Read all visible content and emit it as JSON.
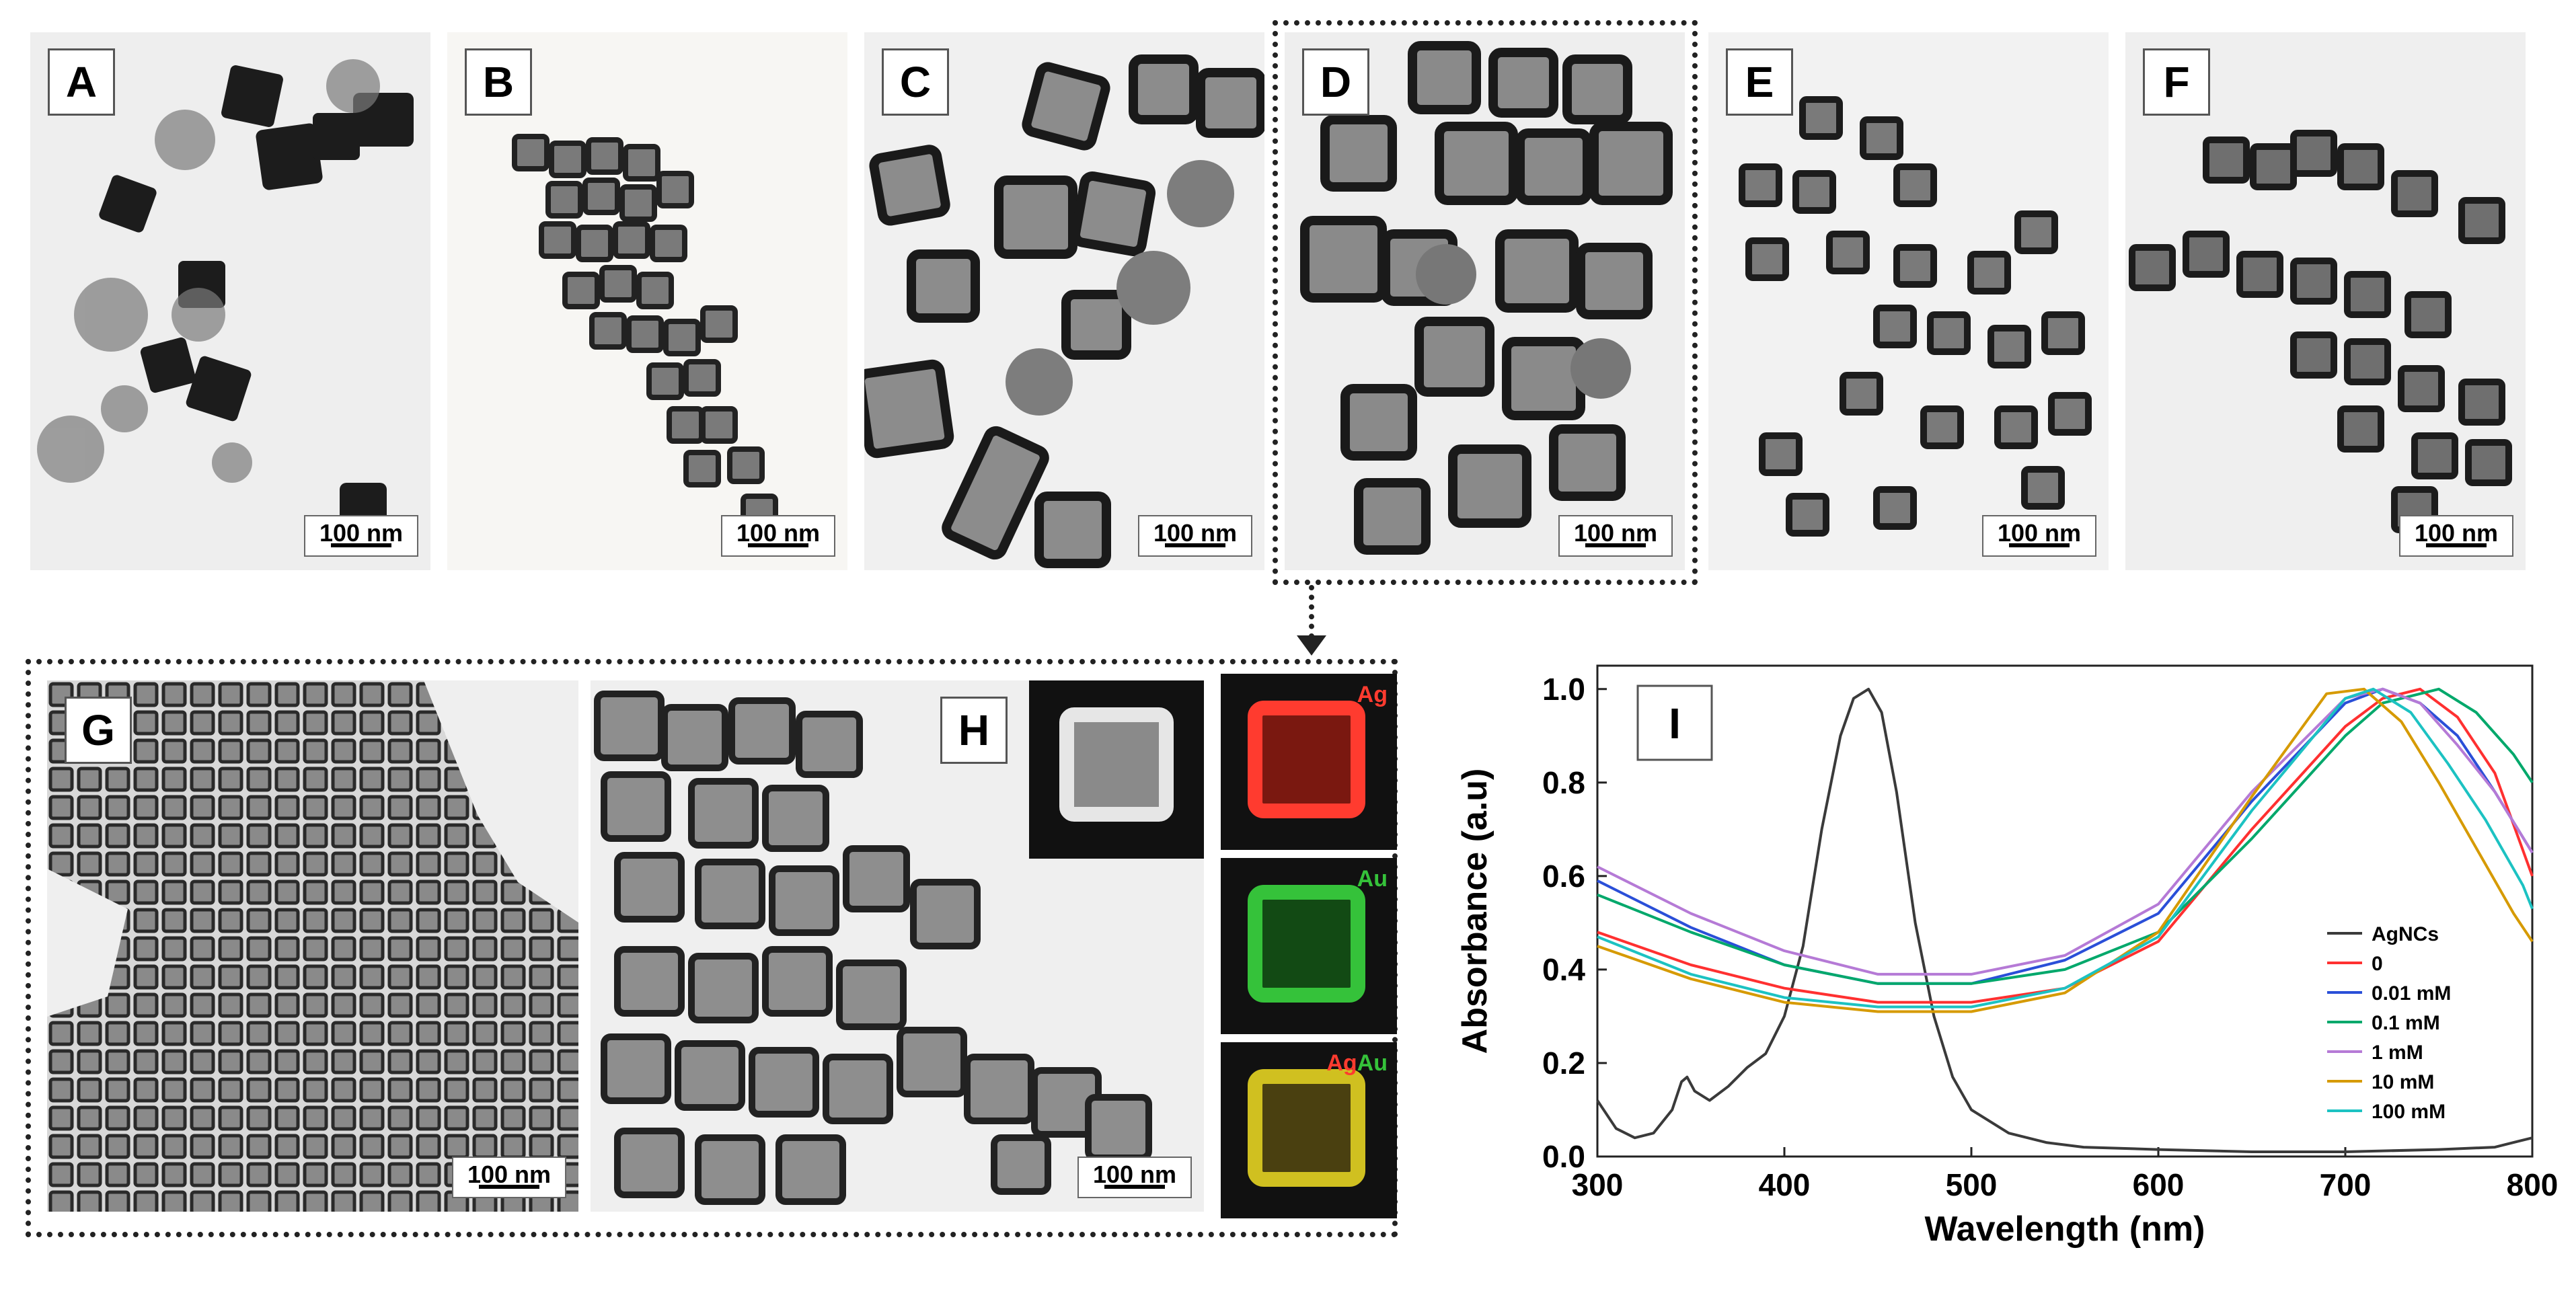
{
  "panels": {
    "A": {
      "label": "A",
      "scale": "100 nm"
    },
    "B": {
      "label": "B",
      "scale": "100 nm"
    },
    "C": {
      "label": "C",
      "scale": "100 nm"
    },
    "D": {
      "label": "D",
      "scale": "100 nm"
    },
    "E": {
      "label": "E",
      "scale": "100 nm"
    },
    "F": {
      "label": "F",
      "scale": "100 nm"
    },
    "G": {
      "label": "G",
      "scale": "100 nm"
    },
    "H": {
      "label": "H",
      "scale": "100 nm"
    }
  },
  "maps": {
    "ag": "Ag",
    "au": "Au",
    "ag_overlay": "Ag",
    "au_overlay": "Au"
  },
  "map_colors": {
    "ag": "#ff3b2f",
    "au": "#35c23a"
  },
  "chart_data": {
    "type": "line",
    "panel_label": "I",
    "xlabel": "Wavelength (nm)",
    "ylabel": "Absorbance (a.u)",
    "xlim": [
      300,
      800
    ],
    "ylim": [
      0.0,
      1.05
    ],
    "xticks": [
      "300",
      "400",
      "500",
      "600",
      "700",
      "800"
    ],
    "yticks": [
      "0.0",
      "0.2",
      "0.4",
      "0.6",
      "0.8",
      "1.0"
    ],
    "legend_position": "bottom-right",
    "series": [
      {
        "name": "AgNCs",
        "color": "#3a3a3a",
        "x": [
          300,
          310,
          320,
          330,
          340,
          345,
          348,
          352,
          360,
          370,
          380,
          390,
          400,
          410,
          420,
          430,
          437,
          445,
          452,
          460,
          470,
          480,
          490,
          500,
          520,
          540,
          560,
          600,
          650,
          700,
          750,
          780,
          790,
          800
        ],
        "y": [
          0.12,
          0.06,
          0.04,
          0.05,
          0.1,
          0.16,
          0.17,
          0.14,
          0.12,
          0.15,
          0.19,
          0.22,
          0.3,
          0.45,
          0.7,
          0.9,
          0.98,
          1.0,
          0.95,
          0.78,
          0.5,
          0.3,
          0.17,
          0.1,
          0.05,
          0.03,
          0.02,
          0.015,
          0.01,
          0.01,
          0.015,
          0.02,
          0.03,
          0.04
        ]
      },
      {
        "name": "0",
        "color": "#ff3030",
        "x": [
          300,
          350,
          400,
          450,
          500,
          550,
          600,
          650,
          700,
          720,
          740,
          760,
          780,
          800
        ],
        "y": [
          0.48,
          0.41,
          0.36,
          0.33,
          0.33,
          0.36,
          0.46,
          0.7,
          0.92,
          0.98,
          1.0,
          0.94,
          0.82,
          0.6
        ]
      },
      {
        "name": "0.01 mM",
        "color": "#2a4fd8",
        "x": [
          300,
          350,
          400,
          450,
          500,
          550,
          600,
          650,
          700,
          720,
          740,
          760,
          780,
          800
        ],
        "y": [
          0.59,
          0.49,
          0.41,
          0.37,
          0.37,
          0.42,
          0.52,
          0.76,
          0.97,
          1.0,
          0.97,
          0.9,
          0.78,
          0.65
        ]
      },
      {
        "name": "0.1 mM",
        "color": "#00a86b",
        "x": [
          300,
          350,
          400,
          450,
          500,
          550,
          600,
          650,
          700,
          720,
          750,
          770,
          790,
          800
        ],
        "y": [
          0.56,
          0.48,
          0.41,
          0.37,
          0.37,
          0.4,
          0.48,
          0.68,
          0.9,
          0.97,
          1.0,
          0.95,
          0.86,
          0.8
        ]
      },
      {
        "name": "1 mM",
        "color": "#b57ad6",
        "x": [
          300,
          350,
          400,
          450,
          500,
          550,
          600,
          650,
          700,
          720,
          740,
          760,
          780,
          800
        ],
        "y": [
          0.62,
          0.52,
          0.44,
          0.39,
          0.39,
          0.43,
          0.54,
          0.78,
          0.98,
          1.0,
          0.97,
          0.88,
          0.78,
          0.65
        ]
      },
      {
        "name": "10 mM",
        "color": "#d69a00",
        "x": [
          300,
          350,
          400,
          450,
          500,
          550,
          600,
          650,
          690,
          710,
          730,
          750,
          770,
          790,
          800
        ],
        "y": [
          0.45,
          0.38,
          0.33,
          0.31,
          0.31,
          0.35,
          0.48,
          0.77,
          0.99,
          1.0,
          0.93,
          0.8,
          0.66,
          0.52,
          0.46
        ]
      },
      {
        "name": "100 mM",
        "color": "#1cc2c2",
        "x": [
          300,
          350,
          400,
          450,
          500,
          550,
          600,
          650,
          700,
          715,
          735,
          755,
          775,
          795,
          800
        ],
        "y": [
          0.47,
          0.39,
          0.34,
          0.32,
          0.32,
          0.36,
          0.47,
          0.74,
          0.98,
          1.0,
          0.95,
          0.84,
          0.72,
          0.58,
          0.53
        ]
      }
    ]
  }
}
